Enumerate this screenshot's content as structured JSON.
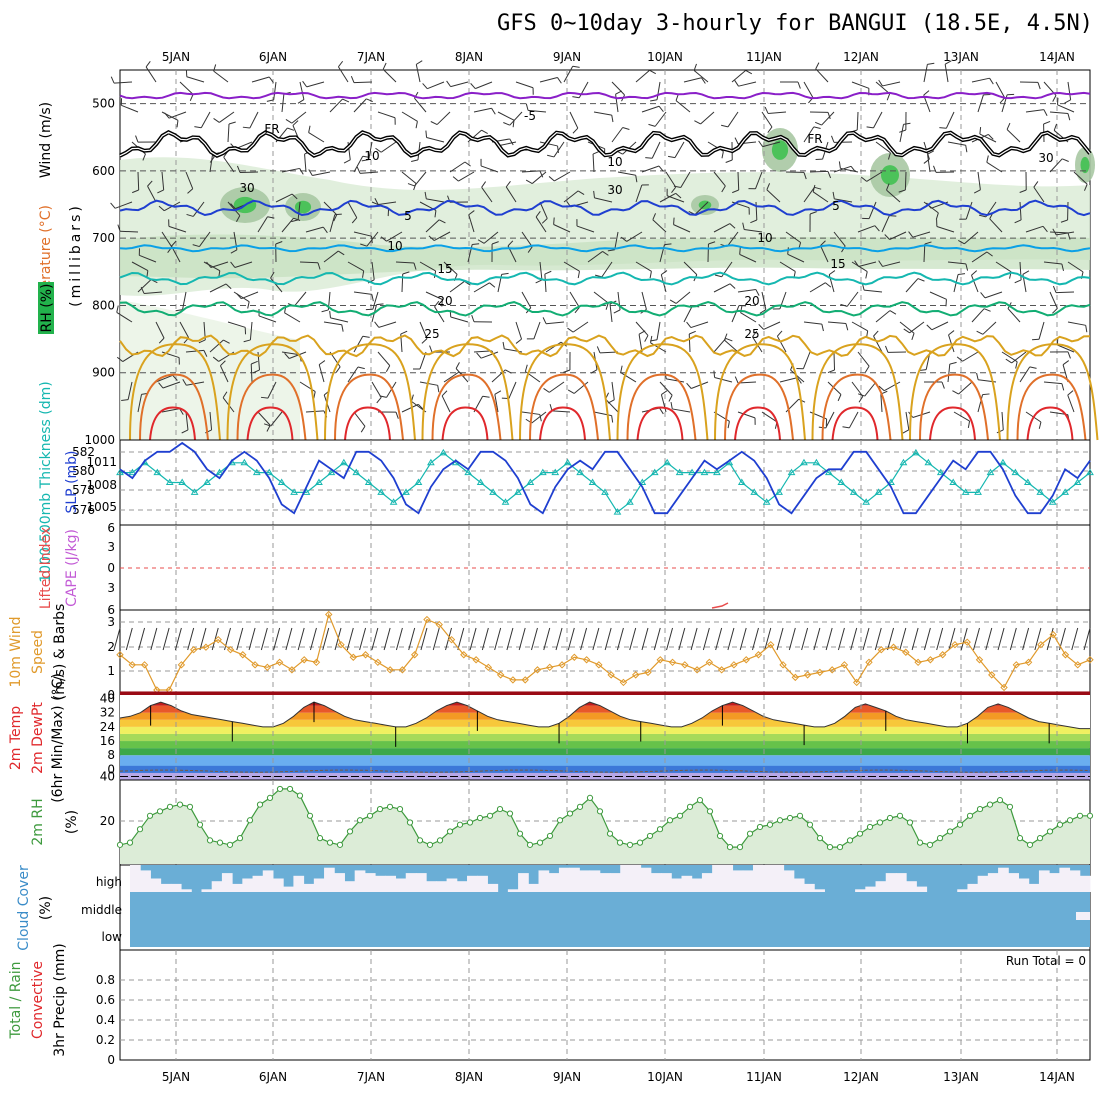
{
  "title": "GFS 0~10day 3-hourly for BANGUI (18.5E, 4.5N)",
  "dates": [
    "5JAN",
    "6JAN",
    "7JAN",
    "8JAN",
    "9JAN",
    "10JAN",
    "11JAN",
    "12JAN",
    "13JAN",
    "14JAN"
  ],
  "colors": {
    "purple": "#8a1fc8",
    "black": "#000000",
    "blue": "#1f3fd0",
    "lightblue": "#0aa0e6",
    "teal": "#15b7b0",
    "green": "#12ad73",
    "gold": "#d9a21e",
    "orange": "#e0702a",
    "red": "#e0282c",
    "rh_fill": "#dcecd7",
    "rh_line": "#3e9a3e",
    "cloud": "#6aaed6",
    "wind_speed": "#e09a2c",
    "lifted_index": "#e84c4c",
    "cape": "#c35cd6"
  },
  "panels": {
    "upper": {
      "ylabel_wind": "Wind (m/s)",
      "ylabel_temp": "Temperature (°C)",
      "ylabel_rh": "RH (%)",
      "ylabel_unit": "(millibars)",
      "y_ticks": [
        "500",
        "600",
        "700",
        "800",
        "900",
        "1000"
      ],
      "contour_labels": [
        "-5",
        "FR",
        "FR",
        "5",
        "5",
        "10",
        "10",
        "15",
        "15",
        "20",
        "20",
        "25",
        "25",
        "30",
        "30",
        "30",
        "10",
        "10"
      ]
    },
    "slp": {
      "ylabel_thk": "1000-500mb Thickness (dm)",
      "ylabel_slp": "SLP (mb)",
      "left_ticks": [
        "582",
        "580",
        "578",
        "576"
      ],
      "right_ticks": [
        "1011",
        "1008",
        "1005"
      ]
    },
    "cape": {
      "ylabel_li": "Lifted Index",
      "ylabel_cape": "CAPE (J/kg)",
      "ticks": [
        "6",
        "3",
        "0",
        "3",
        "6"
      ]
    },
    "wind10m": {
      "ylabel_a": "10m Wind",
      "ylabel_b": "Speed",
      "ylabel_c": "(m/s) & Barbs",
      "ticks": [
        "3",
        "2",
        "1",
        "0"
      ]
    },
    "t2m": {
      "ylabel_a": "2m Temp",
      "ylabel_b": "2m DewPt",
      "ylabel_c": "(6hr Min/Max) (°C)",
      "ticks": [
        "40",
        "32",
        "24",
        "16",
        "8",
        "0",
        "40"
      ]
    },
    "rh2m": {
      "ylabel_a": "2m RH",
      "ylabel_b": "(%)",
      "ticks": [
        "20"
      ]
    },
    "cloud": {
      "ylabel_a": "Cloud Cover",
      "ylabel_b": "(%)",
      "ticks": [
        "high",
        "middle",
        "low"
      ]
    },
    "precip": {
      "ylabel_a": "Total / Rain",
      "ylabel_b": "Convective",
      "ylabel_c": "3hr Precip (mm)",
      "ticks": [
        "0.8",
        "0.6",
        "0.4",
        "0.2",
        "0"
      ],
      "run_total": "Run Total = 0"
    }
  },
  "chart_data": [
    {
      "type": "line",
      "name": "GFS upper-air cross section",
      "pressure_range_mb": [
        450,
        1000
      ],
      "isotherms_C": [
        {
          "label": "-5",
          "level_mb": 488
        },
        {
          "label": "FR (0)",
          "level_mb": 560
        },
        {
          "label": "5",
          "level_mb": 655
        },
        {
          "label": "10",
          "level_mb": 715
        },
        {
          "label": "15",
          "level_mb": 760
        },
        {
          "label": "20",
          "level_mb": 805
        },
        {
          "label": "25",
          "level_mb": 860
        }
      ]
    },
    {
      "type": "line",
      "name": "SLP & Thickness",
      "slp_ylim_mb": [
        1003,
        1012
      ],
      "slp_mb": [
        1009,
        1008,
        1010,
        1011,
        1011,
        1012,
        1011,
        1009,
        1008,
        1010,
        1011,
        1010,
        1008,
        1005,
        1004,
        1007,
        1010,
        1009,
        1008,
        1011,
        1011,
        1010,
        1008,
        1005,
        1004,
        1007,
        1009,
        1010,
        1009,
        1011,
        1011,
        1010,
        1008,
        1005,
        1004,
        1007,
        1009,
        1010,
        1009,
        1011,
        1011,
        1009,
        1007,
        1004,
        1004,
        1006,
        1008,
        1010,
        1009,
        1010,
        1011,
        1010,
        1008,
        1005,
        1004,
        1006,
        1008,
        1009,
        1009,
        1011,
        1011,
        1009,
        1007,
        1004,
        1004,
        1006,
        1008,
        1010,
        1009,
        1011,
        1011,
        1009,
        1006,
        1004,
        1004,
        1006,
        1009,
        1008,
        1010
      ],
      "thickness_ylim_dm": [
        575,
        583
      ],
      "thickness_dm": [
        580,
        580,
        581,
        580,
        579,
        579,
        578,
        579,
        580,
        581,
        581,
        580,
        580,
        579,
        578,
        578,
        579,
        580,
        581,
        580,
        579,
        578,
        577,
        578,
        579,
        581,
        582,
        581,
        580,
        579,
        578,
        577,
        578,
        579,
        580,
        580,
        581,
        580,
        579,
        578,
        576,
        577,
        579,
        580,
        581,
        580,
        580,
        580,
        580,
        581,
        579,
        578,
        577,
        578,
        580,
        581,
        581,
        580,
        579,
        578,
        577,
        578,
        579,
        581,
        582,
        581,
        580,
        579,
        578,
        578,
        580,
        581,
        580,
        579,
        578,
        577,
        578,
        579,
        580
      ]
    },
    {
      "type": "line",
      "name": "10m Wind Speed",
      "ylim": [
        0,
        3.3
      ],
      "values": [
        1.6,
        1.2,
        1.2,
        0.2,
        0.2,
        1.2,
        1.8,
        1.9,
        2.2,
        1.8,
        1.6,
        1.2,
        1.1,
        1.3,
        1.0,
        1.4,
        1.3,
        3.2,
        2.0,
        1.5,
        1.6,
        1.3,
        1.0,
        1.0,
        1.6,
        3.0,
        2.8,
        2.2,
        1.6,
        1.4,
        1.1,
        0.8,
        0.6,
        0.6,
        1.0,
        1.1,
        1.2,
        1.5,
        1.4,
        1.2,
        0.8,
        0.5,
        0.8,
        0.9,
        1.4,
        1.3,
        1.2,
        1.0,
        1.3,
        1.0,
        1.2,
        1.4,
        1.6,
        2.0,
        1.2,
        0.7,
        0.8,
        0.9,
        1.0,
        1.2,
        0.5,
        1.3,
        1.8,
        1.9,
        1.7,
        1.3,
        1.4,
        1.6,
        2.0,
        2.1,
        1.4,
        0.8,
        0.3,
        1.2,
        1.3,
        2.0,
        2.4,
        1.6,
        1.2,
        1.4
      ]
    },
    {
      "type": "area",
      "name": "2m Temp",
      "ylim": [
        -6,
        42
      ],
      "values": [
        29,
        30,
        32,
        36,
        38,
        36,
        33,
        31,
        30,
        29,
        28,
        27,
        26,
        25,
        24,
        24,
        26,
        30,
        35,
        38,
        36,
        33,
        30,
        28,
        27,
        26,
        25,
        24,
        24,
        26,
        29,
        33,
        36,
        38,
        36,
        33,
        30,
        28,
        27,
        26,
        25,
        24,
        24,
        26,
        30,
        35,
        38,
        36,
        33,
        30,
        28,
        27,
        26,
        25,
        24,
        24,
        26,
        29,
        33,
        36,
        38,
        36,
        33,
        30,
        28,
        27,
        26,
        25,
        24,
        24,
        26,
        30,
        35,
        37,
        35,
        33,
        30,
        28,
        27,
        26,
        25,
        24,
        24,
        26,
        30,
        35,
        37,
        35,
        32,
        29,
        27,
        26,
        25,
        24,
        23,
        23
      ]
    },
    {
      "type": "area",
      "name": "2m RH",
      "ylim": [
        0,
        38
      ],
      "values": [
        9,
        10,
        16,
        22,
        24,
        26,
        27,
        26,
        18,
        11,
        10,
        9,
        12,
        20,
        27,
        30,
        34,
        34,
        31,
        22,
        12,
        10,
        9,
        15,
        20,
        22,
        25,
        26,
        25,
        19,
        11,
        9,
        11,
        15,
        18,
        19,
        21,
        22,
        25,
        23,
        14,
        9,
        10,
        13,
        20,
        23,
        26,
        30,
        24,
        14,
        10,
        9,
        10,
        13,
        16,
        20,
        22,
        26,
        29,
        24,
        13,
        8,
        8,
        14,
        17,
        18,
        20,
        21,
        22,
        18,
        12,
        8,
        8,
        11,
        14,
        17,
        19,
        21,
        22,
        19,
        10,
        9,
        12,
        15,
        18,
        22,
        25,
        27,
        29,
        26,
        12,
        9,
        12,
        15,
        18,
        20,
        22,
        22
      ]
    },
    {
      "type": "bar",
      "name": "Cloud Cover",
      "categories": [
        "high",
        "middle",
        "low"
      ],
      "high_fraction": [
        0.0,
        0.2,
        0.5,
        0.7,
        0.7,
        0.9,
        1.0,
        0.9,
        0.6,
        0.3,
        0.7,
        0.5,
        0.4,
        0.2,
        0.5,
        0.8,
        0.4,
        0.7,
        0.5,
        0.1,
        0.3,
        0.6,
        0.2,
        0.3,
        0.4,
        0.4,
        0.5,
        0.3,
        0.3,
        0.6,
        0.6,
        0.5,
        0.6,
        0.4,
        0.4,
        0.7,
        1.0,
        0.9,
        0.3,
        0.7,
        0.2,
        0.3,
        0.1,
        0.1,
        0.2,
        0.2,
        0.3,
        0.3,
        0.0,
        0.0,
        0.1,
        0.3,
        0.3,
        0.5,
        0.4,
        0.5,
        0.3,
        0.0,
        0.0,
        0.2,
        0.2,
        0.0,
        0.0,
        0.0,
        0.2,
        0.5,
        0.7,
        0.9,
        1.0,
        1.0,
        1.0,
        0.9,
        0.8,
        0.6,
        0.3,
        0.3,
        0.6,
        0.8,
        1.0,
        1.0,
        1.0,
        0.9,
        0.7,
        0.4,
        0.3,
        0.1,
        0.3,
        0.5,
        0.7,
        0.2,
        0.3,
        0.1,
        0.2,
        0.4
      ],
      "middle_fraction": 1.0,
      "low_fraction": 1.0
    },
    {
      "type": "line",
      "name": "3hr Precip",
      "ylim": [
        0,
        1
      ],
      "values": [
        0
      ],
      "run_total": 0
    }
  ]
}
